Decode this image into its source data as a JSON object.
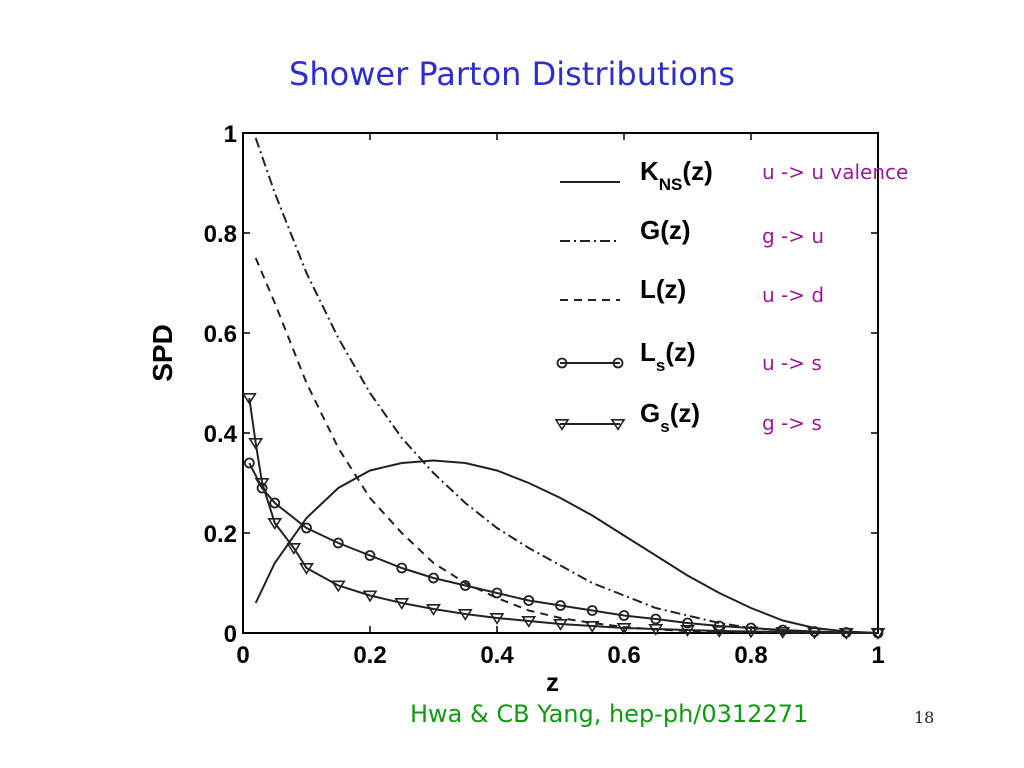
{
  "slide": {
    "title": "Shower Parton Distributions",
    "attribution": "Hwa & CB Yang, hep-ph/0312271",
    "page_number": "18"
  },
  "chart_data": {
    "type": "line",
    "title": "",
    "xlabel": "z",
    "ylabel": "SPD",
    "xlim": [
      0,
      1
    ],
    "ylim": [
      0,
      1
    ],
    "x_ticks": [
      0,
      0.2,
      0.4,
      0.6,
      0.8,
      1
    ],
    "x_tick_labels": [
      "0",
      "0.2",
      "0.4",
      "0.6",
      "0.8",
      "1"
    ],
    "y_ticks": [
      0,
      0.2,
      0.4,
      0.6,
      0.8,
      1
    ],
    "y_tick_labels": [
      "0",
      "0.2",
      "0.4",
      "0.6",
      "0.8",
      "1"
    ],
    "grid": false,
    "legend_position": "top-right",
    "series": [
      {
        "name": "K_NS(z)",
        "label_main": "K",
        "label_sub": "NS",
        "label_tail": "(z)",
        "description": "u -> u valence",
        "style": "solid",
        "marker": "none",
        "x": [
          0.02,
          0.05,
          0.1,
          0.15,
          0.2,
          0.25,
          0.3,
          0.35,
          0.4,
          0.45,
          0.5,
          0.55,
          0.6,
          0.65,
          0.7,
          0.75,
          0.8,
          0.85,
          0.9,
          0.95,
          1.0
        ],
        "y": [
          0.06,
          0.14,
          0.23,
          0.29,
          0.325,
          0.34,
          0.345,
          0.34,
          0.325,
          0.3,
          0.27,
          0.235,
          0.195,
          0.155,
          0.115,
          0.08,
          0.05,
          0.025,
          0.01,
          0.003,
          0.0
        ]
      },
      {
        "name": "G(z)",
        "label_main": "G",
        "label_sub": "",
        "label_tail": "(z)",
        "description": "g -> u",
        "style": "dashdot",
        "marker": "none",
        "x": [
          0.02,
          0.05,
          0.1,
          0.15,
          0.2,
          0.25,
          0.3,
          0.35,
          0.4,
          0.45,
          0.5,
          0.55,
          0.6,
          0.65,
          0.7,
          0.75,
          0.8,
          0.85,
          0.9,
          0.95,
          1.0
        ],
        "y": [
          0.99,
          0.88,
          0.72,
          0.59,
          0.48,
          0.39,
          0.32,
          0.26,
          0.21,
          0.17,
          0.135,
          0.1,
          0.075,
          0.05,
          0.035,
          0.02,
          0.01,
          0.005,
          0.002,
          0.0,
          0.0
        ]
      },
      {
        "name": "L(z)",
        "label_main": "L",
        "label_sub": "",
        "label_tail": "(z)",
        "description": "u -> d",
        "style": "dashed",
        "marker": "none",
        "x": [
          0.02,
          0.05,
          0.1,
          0.15,
          0.2,
          0.25,
          0.3,
          0.35,
          0.4,
          0.45,
          0.5,
          0.55,
          0.6,
          0.65,
          0.7,
          0.75,
          0.8,
          0.85,
          0.9,
          0.95,
          1.0
        ],
        "y": [
          0.75,
          0.66,
          0.5,
          0.37,
          0.27,
          0.2,
          0.14,
          0.1,
          0.07,
          0.045,
          0.03,
          0.02,
          0.012,
          0.007,
          0.004,
          0.002,
          0.001,
          0.0,
          0.0,
          0.0,
          0.0
        ]
      },
      {
        "name": "L_s(z)",
        "label_main": "L",
        "label_sub": "s",
        "label_tail": "(z)",
        "description": "u -> s",
        "style": "solid",
        "marker": "circle",
        "x": [
          0.01,
          0.03,
          0.05,
          0.1,
          0.15,
          0.2,
          0.25,
          0.3,
          0.35,
          0.4,
          0.45,
          0.5,
          0.55,
          0.6,
          0.65,
          0.7,
          0.75,
          0.8,
          0.85,
          0.9,
          0.95,
          1.0
        ],
        "y": [
          0.34,
          0.29,
          0.26,
          0.21,
          0.18,
          0.155,
          0.13,
          0.11,
          0.095,
          0.08,
          0.065,
          0.055,
          0.045,
          0.035,
          0.028,
          0.02,
          0.014,
          0.01,
          0.006,
          0.003,
          0.001,
          0.0
        ]
      },
      {
        "name": "G_s(z)",
        "label_main": "G",
        "label_sub": "s",
        "label_tail": "(z)",
        "description": "g -> s",
        "style": "solid",
        "marker": "triangle-down",
        "x": [
          0.01,
          0.02,
          0.03,
          0.05,
          0.08,
          0.1,
          0.15,
          0.2,
          0.25,
          0.3,
          0.35,
          0.4,
          0.45,
          0.5,
          0.55,
          0.6,
          0.65,
          0.7,
          0.75,
          0.8,
          0.85,
          0.9,
          0.95,
          1.0
        ],
        "y": [
          0.47,
          0.38,
          0.3,
          0.22,
          0.17,
          0.13,
          0.095,
          0.075,
          0.06,
          0.048,
          0.038,
          0.03,
          0.024,
          0.018,
          0.014,
          0.01,
          0.008,
          0.006,
          0.004,
          0.003,
          0.002,
          0.001,
          0.0,
          0.0
        ]
      }
    ]
  }
}
